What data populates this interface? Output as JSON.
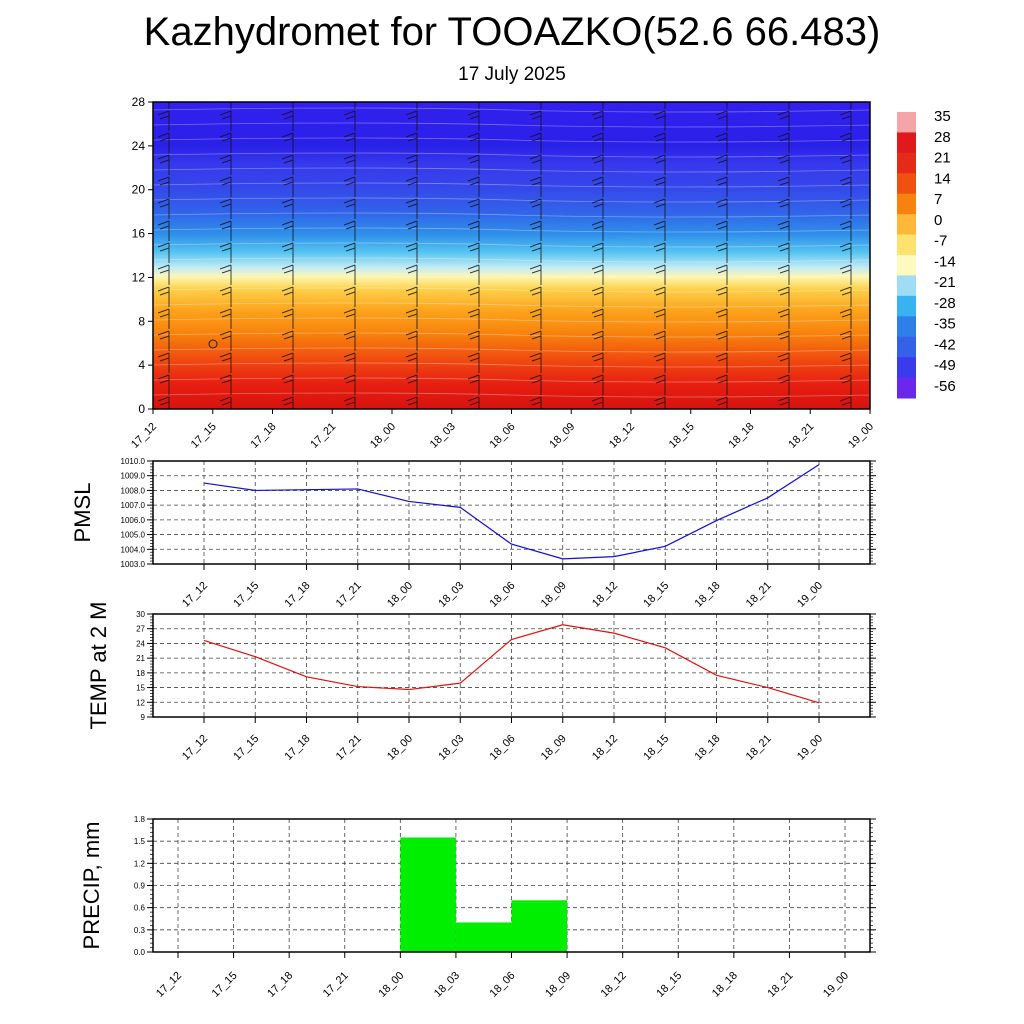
{
  "title": "Kazhydromet for TOOAZKO(52.6 66.483)",
  "subtitle": "17 July 2025",
  "chart_data": [
    {
      "type": "heatmap",
      "name": "upper-air temperature and wind cross-section",
      "x": [
        "17_12",
        "17_15",
        "17_18",
        "17_21",
        "18_00",
        "18_03",
        "18_06",
        "18_09",
        "18_12",
        "18_15",
        "18_18",
        "18_21",
        "19_00"
      ],
      "y_ticks": [
        "0",
        "4",
        "8",
        "12",
        "16",
        "20",
        "24",
        "28"
      ],
      "ylim": [
        0,
        28
      ],
      "colorbar": {
        "labels": [
          "35",
          "28",
          "21",
          "14",
          "7",
          "0",
          "-7",
          "-14",
          "-21",
          "-28",
          "-35",
          "-42",
          "-49",
          "-56"
        ],
        "colors": [
          "#f3a5a8",
          "#e01a1c",
          "#e42b1a",
          "#f05012",
          "#f8820e",
          "#fdb83a",
          "#fde270",
          "#fdfac0",
          "#a0dcf3",
          "#38b3ef",
          "#2f7fe8",
          "#3560e8",
          "#3a3cec",
          "#6a28ec"
        ]
      }
    },
    {
      "type": "line",
      "ylabel": "PMSL",
      "x": [
        "17_12",
        "17_15",
        "17_18",
        "17_21",
        "18_00",
        "18_03",
        "18_06",
        "18_09",
        "18_12",
        "18_15",
        "18_18",
        "18_21",
        "19_00"
      ],
      "values": [
        1008.5,
        1008.0,
        1008.05,
        1008.1,
        1007.25,
        1006.85,
        1004.35,
        1003.35,
        1003.5,
        1004.2,
        1005.95,
        1007.5,
        1009.75
      ],
      "y_ticks": [
        "1003.0",
        "1004.0",
        "1005.0",
        "1006.0",
        "1007.0",
        "1008.0",
        "1009.0",
        "1010.0"
      ],
      "ylim": [
        1003,
        1010
      ],
      "color": "#1010cc"
    },
    {
      "type": "line",
      "ylabel": "TEMP at 2 M",
      "x": [
        "17_12",
        "17_15",
        "17_18",
        "17_21",
        "18_00",
        "18_03",
        "18_06",
        "18_09",
        "18_12",
        "18_15",
        "18_18",
        "18_21",
        "19_00"
      ],
      "values": [
        24.6,
        21.3,
        17.2,
        15.2,
        14.6,
        15.9,
        24.8,
        27.8,
        26.1,
        23.1,
        17.5,
        15.0,
        11.9
      ],
      "y_ticks": [
        "9",
        "12",
        "15",
        "18",
        "21",
        "24",
        "27",
        "30"
      ],
      "ylim": [
        9,
        30
      ],
      "color": "#dd1111"
    },
    {
      "type": "bar",
      "ylabel": "PRECIP, mm",
      "x": [
        "17_12",
        "17_15",
        "17_18",
        "17_21",
        "18_00",
        "18_03",
        "18_06",
        "18_09",
        "18_12",
        "18_15",
        "18_18",
        "18_21",
        "19_00"
      ],
      "values": [
        0,
        0,
        0,
        0,
        0,
        1.55,
        0.4,
        0.7,
        0,
        0,
        0,
        0,
        0
      ],
      "y_ticks": [
        "0.0",
        "0.3",
        "0.6",
        "0.9",
        "1.2",
        "1.5",
        "1.8"
      ],
      "ylim": [
        0,
        1.8
      ],
      "color": "#00ee00"
    }
  ]
}
